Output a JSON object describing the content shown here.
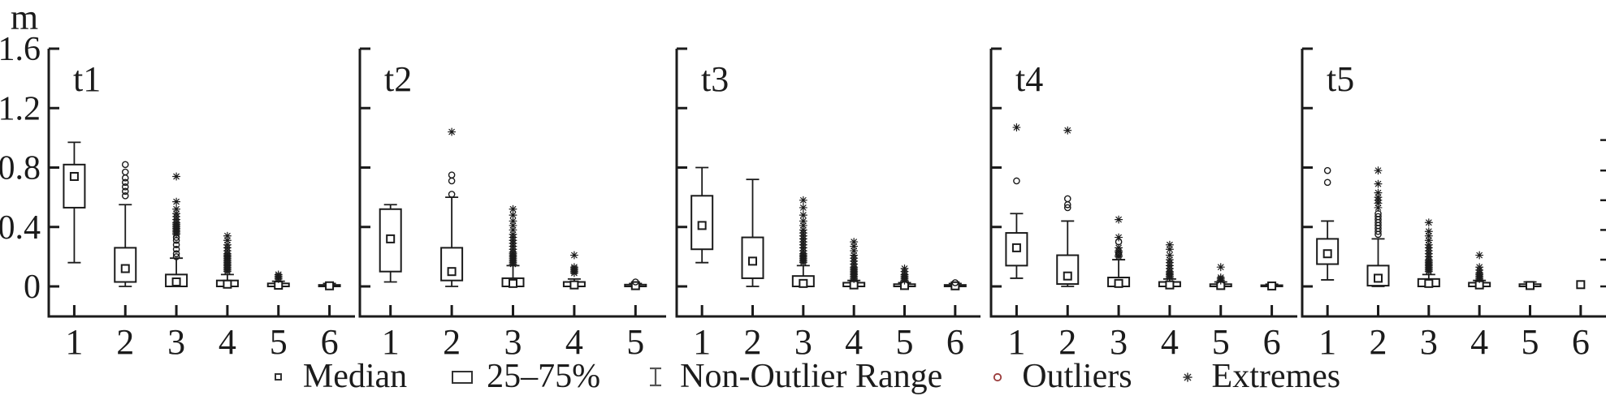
{
  "chart_data": {
    "type": "box",
    "title": "",
    "unit": "m",
    "ylabel": "m",
    "ylim": [
      0,
      1.6
    ],
    "y_tick_labels": [
      "0",
      "0.4",
      "0.8",
      "1.2",
      "1.6"
    ],
    "y_tick_values": [
      0,
      0.4,
      0.8,
      1.2,
      1.6
    ],
    "grid": false,
    "legend_position": "bottom-center",
    "right_edge_tick_values": [
      0.985,
      0.78,
      0.58,
      0.38,
      0.18,
      0.0
    ],
    "panels": [
      {
        "title": "t1",
        "categories": [
          "1",
          "2",
          "3",
          "4",
          "5",
          "6"
        ],
        "boxes": [
          {
            "cat": "1",
            "low": 0.16,
            "q1": 0.53,
            "median": 0.74,
            "q3": 0.82,
            "high": 0.97,
            "outliers": [],
            "extremes": []
          },
          {
            "cat": "2",
            "low": 0.0,
            "q1": 0.03,
            "median": 0.12,
            "q3": 0.26,
            "high": 0.55,
            "outliers": [
              0.61,
              0.64,
              0.67,
              0.7,
              0.73,
              0.77,
              0.82
            ],
            "extremes": []
          },
          {
            "cat": "3",
            "low": 0.0,
            "q1": 0.0,
            "median": 0.03,
            "q3": 0.08,
            "high": 0.19,
            "outliers": [
              0.2,
              0.22,
              0.25,
              0.28,
              0.31,
              0.33
            ],
            "extremes": [
              0.35,
              0.36,
              0.37,
              0.38,
              0.39,
              0.4,
              0.41,
              0.42,
              0.43,
              0.45,
              0.47,
              0.49,
              0.52,
              0.57,
              0.74
            ]
          },
          {
            "cat": "4",
            "low": 0.0,
            "q1": 0.0,
            "median": 0.015,
            "q3": 0.04,
            "high": 0.08,
            "outliers": [],
            "extremes": [
              0.1,
              0.11,
              0.12,
              0.13,
              0.14,
              0.15,
              0.16,
              0.17,
              0.18,
              0.19,
              0.2,
              0.21,
              0.22,
              0.24,
              0.26,
              0.28,
              0.31,
              0.34
            ]
          },
          {
            "cat": "5",
            "low": 0.0,
            "q1": 0.0,
            "median": 0.008,
            "q3": 0.02,
            "high": 0.035,
            "outliers": [],
            "extremes": [
              0.05,
              0.06,
              0.07,
              0.08
            ]
          },
          {
            "cat": "6",
            "low": 0.0,
            "q1": 0.0,
            "median": 0.004,
            "q3": 0.01,
            "high": 0.02,
            "outliers": [],
            "extremes": []
          }
        ]
      },
      {
        "title": "t2",
        "categories": [
          "1",
          "2",
          "3",
          "4",
          "5"
        ],
        "boxes": [
          {
            "cat": "1",
            "low": 0.03,
            "q1": 0.1,
            "median": 0.32,
            "q3": 0.52,
            "high": 0.55,
            "outliers": [],
            "extremes": []
          },
          {
            "cat": "2",
            "low": 0.0,
            "q1": 0.04,
            "median": 0.1,
            "q3": 0.26,
            "high": 0.6,
            "outliers": [
              0.62,
              0.71,
              0.75
            ],
            "extremes": [
              1.04
            ]
          },
          {
            "cat": "3",
            "low": 0.0,
            "q1": 0.0,
            "median": 0.02,
            "q3": 0.055,
            "high": 0.14,
            "outliers": [],
            "extremes": [
              0.15,
              0.16,
              0.17,
              0.18,
              0.19,
              0.2,
              0.21,
              0.22,
              0.23,
              0.25,
              0.27,
              0.29,
              0.31,
              0.33,
              0.35,
              0.38,
              0.41,
              0.44,
              0.48,
              0.52
            ]
          },
          {
            "cat": "4",
            "low": 0.0,
            "q1": 0.0,
            "median": 0.01,
            "q3": 0.03,
            "high": 0.05,
            "outliers": [],
            "extremes": [
              0.09,
              0.1,
              0.11,
              0.12,
              0.13,
              0.21
            ]
          },
          {
            "cat": "5",
            "low": 0.0,
            "q1": 0.0,
            "median": 0.005,
            "q3": 0.012,
            "high": 0.02,
            "outliers": [
              0.03
            ],
            "extremes": []
          }
        ]
      },
      {
        "title": "t3",
        "categories": [
          "1",
          "2",
          "3",
          "4",
          "5",
          "6"
        ],
        "boxes": [
          {
            "cat": "1",
            "low": 0.16,
            "q1": 0.25,
            "median": 0.41,
            "q3": 0.61,
            "high": 0.8,
            "outliers": [],
            "extremes": []
          },
          {
            "cat": "2",
            "low": 0.0,
            "q1": 0.055,
            "median": 0.17,
            "q3": 0.33,
            "high": 0.72,
            "outliers": [],
            "extremes": []
          },
          {
            "cat": "3",
            "low": 0.0,
            "q1": 0.0,
            "median": 0.02,
            "q3": 0.07,
            "high": 0.14,
            "outliers": [],
            "extremes": [
              0.16,
              0.17,
              0.18,
              0.19,
              0.2,
              0.21,
              0.22,
              0.24,
              0.26,
              0.28,
              0.3,
              0.32,
              0.34,
              0.36,
              0.38,
              0.41,
              0.44,
              0.48,
              0.53,
              0.58
            ]
          },
          {
            "cat": "4",
            "low": 0.0,
            "q1": 0.0,
            "median": 0.01,
            "q3": 0.025,
            "high": 0.04,
            "outliers": [],
            "extremes": [
              0.05,
              0.06,
              0.07,
              0.08,
              0.09,
              0.1,
              0.11,
              0.12,
              0.13,
              0.15,
              0.17,
              0.19,
              0.21,
              0.24,
              0.27,
              0.3
            ]
          },
          {
            "cat": "5",
            "low": 0.0,
            "q1": 0.0,
            "median": 0.006,
            "q3": 0.015,
            "high": 0.025,
            "outliers": [],
            "extremes": [
              0.04,
              0.05,
              0.06,
              0.07,
              0.08,
              0.1,
              0.12
            ]
          },
          {
            "cat": "6",
            "low": 0.0,
            "q1": 0.0,
            "median": 0.004,
            "q3": 0.01,
            "high": 0.02,
            "outliers": [
              0.025
            ],
            "extremes": []
          }
        ]
      },
      {
        "title": "t4",
        "categories": [
          "1",
          "2",
          "3",
          "4",
          "5",
          "6"
        ],
        "boxes": [
          {
            "cat": "1",
            "low": 0.055,
            "q1": 0.14,
            "median": 0.26,
            "q3": 0.36,
            "high": 0.49,
            "outliers": [
              0.71
            ],
            "extremes": [
              1.07
            ]
          },
          {
            "cat": "2",
            "low": 0.0,
            "q1": 0.016,
            "median": 0.07,
            "q3": 0.21,
            "high": 0.44,
            "outliers": [
              0.53,
              0.55,
              0.59
            ],
            "extremes": [
              1.05
            ]
          },
          {
            "cat": "3",
            "low": 0.0,
            "q1": 0.0,
            "median": 0.02,
            "q3": 0.06,
            "high": 0.18,
            "outliers": [
              0.22,
              0.3
            ],
            "extremes": [
              0.2,
              0.21,
              0.23,
              0.24,
              0.26,
              0.33,
              0.45
            ]
          },
          {
            "cat": "4",
            "low": 0.0,
            "q1": 0.0,
            "median": 0.01,
            "q3": 0.03,
            "high": 0.05,
            "outliers": [],
            "extremes": [
              0.06,
              0.07,
              0.08,
              0.09,
              0.1,
              0.12,
              0.14,
              0.16,
              0.18,
              0.21,
              0.25,
              0.28
            ]
          },
          {
            "cat": "5",
            "low": 0.0,
            "q1": 0.0,
            "median": 0.006,
            "q3": 0.015,
            "high": 0.03,
            "outliers": [],
            "extremes": [
              0.04,
              0.05,
              0.06,
              0.13
            ]
          },
          {
            "cat": "6",
            "low": 0.0,
            "q1": 0.0,
            "median": 0.003,
            "q3": 0.008,
            "high": 0.015,
            "outliers": [],
            "extremes": []
          }
        ]
      },
      {
        "title": "t5",
        "categories": [
          "1",
          "2",
          "3",
          "4",
          "5",
          "6"
        ],
        "boxes": [
          {
            "cat": "1",
            "low": 0.044,
            "q1": 0.15,
            "median": 0.22,
            "q3": 0.32,
            "high": 0.44,
            "outliers": [
              0.7,
              0.78
            ],
            "extremes": []
          },
          {
            "cat": "2",
            "low": 0.0,
            "q1": 0.005,
            "median": 0.055,
            "q3": 0.14,
            "high": 0.32,
            "outliers": [
              0.35,
              0.37,
              0.39,
              0.41,
              0.43,
              0.45,
              0.47,
              0.49
            ],
            "extremes": [
              0.53,
              0.56,
              0.58,
              0.6,
              0.63,
              0.69,
              0.78
            ]
          },
          {
            "cat": "3",
            "low": 0.0,
            "q1": 0.0,
            "median": 0.02,
            "q3": 0.05,
            "high": 0.08,
            "outliers": [],
            "extremes": [
              0.1,
              0.11,
              0.12,
              0.13,
              0.14,
              0.15,
              0.16,
              0.17,
              0.18,
              0.2,
              0.22,
              0.24,
              0.26,
              0.28,
              0.31,
              0.34,
              0.37,
              0.43
            ]
          },
          {
            "cat": "4",
            "low": 0.0,
            "q1": 0.0,
            "median": 0.01,
            "q3": 0.025,
            "high": 0.04,
            "outliers": [],
            "extremes": [
              0.05,
              0.06,
              0.07,
              0.08,
              0.09,
              0.11,
              0.13,
              0.21
            ]
          },
          {
            "cat": "5",
            "low": 0.0,
            "q1": 0.0,
            "median": 0.006,
            "q3": 0.015,
            "high": 0.03,
            "outliers": [],
            "extremes": []
          },
          {
            "cat": "6",
            "low": null,
            "q1": null,
            "median": 0.012,
            "q3": null,
            "high": null,
            "outliers": [],
            "extremes": []
          }
        ]
      }
    ],
    "legend": [
      {
        "label": "Median",
        "marker": "median-square",
        "color": "#333333"
      },
      {
        "label": "25–75%",
        "marker": "box-square",
        "color": "#333333"
      },
      {
        "label": "Non-Outlier Range",
        "marker": "whisker-range",
        "color": "#555555"
      },
      {
        "label": "Outliers",
        "marker": "outlier-circle",
        "color": "#9a3b3b"
      },
      {
        "label": "Extremes",
        "marker": "extreme-asterisk",
        "color": "#333333"
      }
    ]
  }
}
